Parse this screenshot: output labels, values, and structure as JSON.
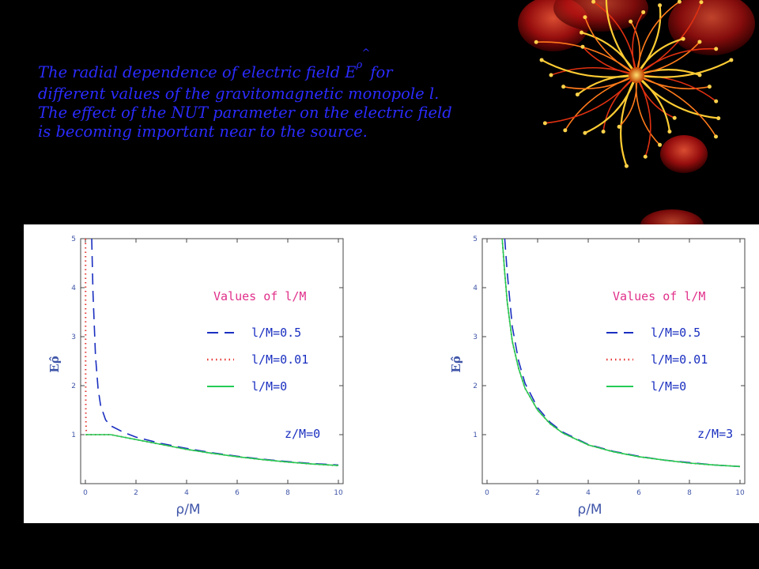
{
  "caption": {
    "line1_pre": "The radial dependence of electric field E",
    "superscript": "ρ",
    "hat": "^",
    "line1_post": "for",
    "line2": "different values of the gravitomagnetic monopole l.",
    "line3": "The effect of the NUT parameter on the electric field",
    "line4": "is becoming important near to the source."
  },
  "decoration": "red-orange-flower-ornament",
  "colors": {
    "background": "#000000",
    "caption_text": "#2b2bff",
    "series_dashed": "#1a2fc0",
    "series_dotted": "#e53935",
    "series_solid": "#22cc55",
    "legend_title": "#e0308a"
  },
  "chart_data": [
    {
      "type": "line",
      "xlabel": "ρ/M",
      "ylabel": "Eρ̂",
      "xlim": [
        0,
        10
      ],
      "ylim": [
        0,
        5
      ],
      "xticks": [
        "0",
        "2",
        "4",
        "6",
        "8",
        "10"
      ],
      "yticks": [
        "1",
        "2",
        "3",
        "4",
        "5"
      ],
      "legend_title": "Values of l/M",
      "annotation": "z/M=0",
      "grid": false,
      "series": [
        {
          "name": "l/M=0.5",
          "style": "dashed",
          "x": [
            0.25,
            0.3,
            0.4,
            0.5,
            0.6,
            0.8,
            1.0,
            1.5,
            2,
            3,
            4,
            5,
            6,
            7,
            8,
            9,
            10
          ],
          "y": [
            5.0,
            3.9,
            2.6,
            1.95,
            1.6,
            1.3,
            1.18,
            1.05,
            0.95,
            0.82,
            0.72,
            0.63,
            0.56,
            0.5,
            0.45,
            0.41,
            0.38
          ]
        },
        {
          "name": "l/M=0.01",
          "style": "dotted",
          "x": [
            0.005,
            0.01,
            0.015,
            0.02,
            0.03,
            0.05,
            0.1,
            0.5,
            1,
            1.5,
            2,
            3,
            4,
            5,
            6,
            7,
            8,
            9,
            10
          ],
          "y": [
            5.0,
            2.5,
            1.6,
            1.3,
            1.1,
            1.0,
            1.0,
            1.0,
            1.0,
            0.95,
            0.9,
            0.8,
            0.7,
            0.62,
            0.55,
            0.49,
            0.44,
            0.4,
            0.37
          ]
        },
        {
          "name": "l/M=0",
          "style": "solid",
          "x": [
            0,
            0.5,
            1,
            1.5,
            2,
            3,
            4,
            5,
            6,
            7,
            8,
            9,
            10
          ],
          "y": [
            1.0,
            1.0,
            1.0,
            0.95,
            0.9,
            0.8,
            0.7,
            0.62,
            0.55,
            0.49,
            0.44,
            0.4,
            0.37
          ]
        }
      ]
    },
    {
      "type": "line",
      "xlabel": "ρ/M",
      "ylabel": "Eρ̂",
      "xlim": [
        0,
        10
      ],
      "ylim": [
        0,
        5
      ],
      "xticks": [
        "0",
        "2",
        "4",
        "6",
        "8",
        "10"
      ],
      "yticks": [
        "1",
        "2",
        "3",
        "4",
        "5"
      ],
      "legend_title": "Values of l/M",
      "annotation": "z/M=3",
      "grid": false,
      "series": [
        {
          "name": "l/M=0.5",
          "style": "dashed",
          "x": [
            0.7,
            0.8,
            1.0,
            1.25,
            1.5,
            2,
            2.5,
            3,
            4,
            5,
            6,
            7,
            8,
            9,
            10
          ],
          "y": [
            5.0,
            4.3,
            3.2,
            2.5,
            2.05,
            1.55,
            1.25,
            1.05,
            0.8,
            0.66,
            0.56,
            0.48,
            0.43,
            0.38,
            0.35
          ]
        },
        {
          "name": "l/M=0.01",
          "style": "dotted",
          "x": [
            0.6,
            0.7,
            0.8,
            1.0,
            1.25,
            1.5,
            2,
            2.5,
            3,
            4,
            5,
            6,
            7,
            8,
            9,
            10
          ],
          "y": [
            5.0,
            4.3,
            3.7,
            2.9,
            2.35,
            1.95,
            1.5,
            1.22,
            1.03,
            0.79,
            0.65,
            0.55,
            0.48,
            0.42,
            0.38,
            0.35
          ]
        },
        {
          "name": "l/M=0",
          "style": "solid",
          "x": [
            0.6,
            0.7,
            0.8,
            1.0,
            1.25,
            1.5,
            2,
            2.5,
            3,
            4,
            5,
            6,
            7,
            8,
            9,
            10
          ],
          "y": [
            5.0,
            4.3,
            3.7,
            2.9,
            2.35,
            1.95,
            1.5,
            1.22,
            1.03,
            0.79,
            0.65,
            0.55,
            0.48,
            0.42,
            0.38,
            0.35
          ]
        }
      ]
    }
  ]
}
